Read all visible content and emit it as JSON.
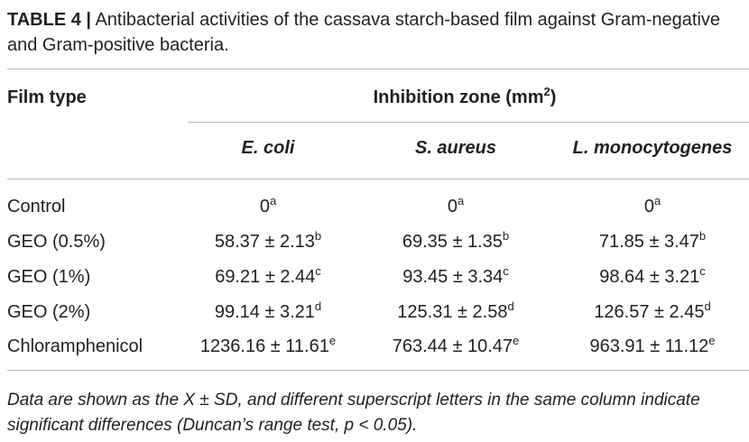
{
  "table": {
    "label": "TABLE 4 |",
    "caption": "Antibacterial activities of the cassava starch-based film against Gram-negative and Gram-positive bacteria.",
    "header": {
      "first": "Film type",
      "group": {
        "text": "Inhibition zone (mm",
        "sup": "2",
        "suffix": ")"
      },
      "columns": [
        "E. coli",
        "S. aureus",
        "L. monocytogenes"
      ]
    },
    "rows": [
      {
        "label": "Control",
        "cells": [
          {
            "value": "0",
            "sup": "a"
          },
          {
            "value": "0",
            "sup": "a"
          },
          {
            "value": "0",
            "sup": "a"
          }
        ]
      },
      {
        "label": "GEO (0.5%)",
        "cells": [
          {
            "value": "58.37 ± 2.13",
            "sup": "b"
          },
          {
            "value": "69.35 ± 1.35",
            "sup": "b"
          },
          {
            "value": "71.85 ± 3.47",
            "sup": "b"
          }
        ]
      },
      {
        "label": "GEO (1%)",
        "cells": [
          {
            "value": "69.21 ± 2.44",
            "sup": "c"
          },
          {
            "value": "93.45 ± 3.34",
            "sup": "c"
          },
          {
            "value": "98.64 ± 3.21",
            "sup": "c"
          }
        ]
      },
      {
        "label": "GEO (2%)",
        "cells": [
          {
            "value": "99.14 ± 3.21",
            "sup": "d"
          },
          {
            "value": "125.31 ± 2.58",
            "sup": "d"
          },
          {
            "value": "126.57 ± 2.45",
            "sup": "d"
          }
        ]
      },
      {
        "label": "Chloramphenicol",
        "cells": [
          {
            "value": "1236.16 ± 11.61",
            "sup": "e"
          },
          {
            "value": "763.44 ± 10.47",
            "sup": "e"
          },
          {
            "value": "963.91 ± 11.12",
            "sup": "e"
          }
        ]
      }
    ],
    "footnote": "Data are shown as the X ± SD, and different superscript letters in the same column indicate significant differences (Duncan’s range test, p < 0.05)."
  }
}
